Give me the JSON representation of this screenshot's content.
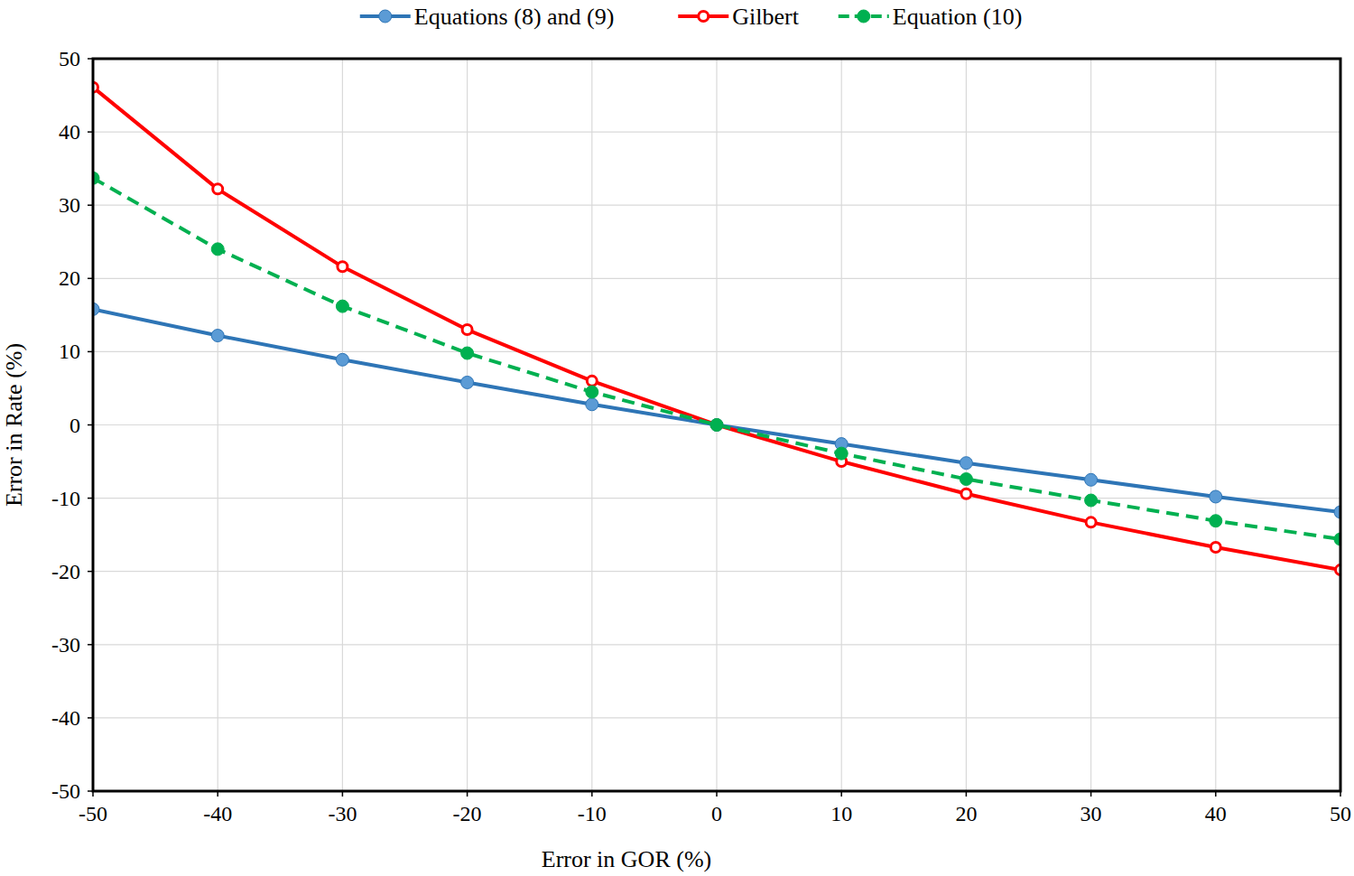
{
  "chart_data": {
    "type": "line",
    "x_label": "Error in GOR (%)",
    "y_label": "Error in Rate (%)",
    "x": [
      -50,
      -40,
      -30,
      -20,
      -10,
      0,
      10,
      20,
      30,
      40,
      50
    ],
    "xlim": [
      -50,
      50
    ],
    "xticks": [
      -50,
      -40,
      -30,
      -20,
      -10,
      0,
      10,
      20,
      30,
      40,
      50
    ],
    "ylim": [
      -50,
      50
    ],
    "yticks": [
      -50,
      -40,
      -30,
      -20,
      -10,
      0,
      10,
      20,
      30,
      40,
      50
    ],
    "grid": true,
    "legend": "top",
    "series": [
      {
        "name": "Equations (8) and (9)",
        "color": "#2e75b6",
        "marker": "circle",
        "line_style": "solid",
        "values": [
          15.8,
          12.2,
          8.9,
          5.8,
          2.8,
          0,
          -2.6,
          -5.2,
          -7.5,
          -9.8,
          -11.9
        ]
      },
      {
        "name": "Gilbert",
        "color": "#ff0000",
        "marker": "open_circle",
        "line_style": "solid",
        "values": [
          46.1,
          32.2,
          21.6,
          13.0,
          6.0,
          0,
          -5.0,
          -9.4,
          -13.3,
          -16.7,
          -19.8
        ]
      },
      {
        "name": "Equation (10)",
        "color": "#00b050",
        "marker": "circle",
        "line_style": "dashed",
        "values": [
          33.7,
          24.0,
          16.2,
          9.8,
          4.5,
          0,
          -3.9,
          -7.4,
          -10.3,
          -13.1,
          -15.6
        ]
      }
    ]
  }
}
